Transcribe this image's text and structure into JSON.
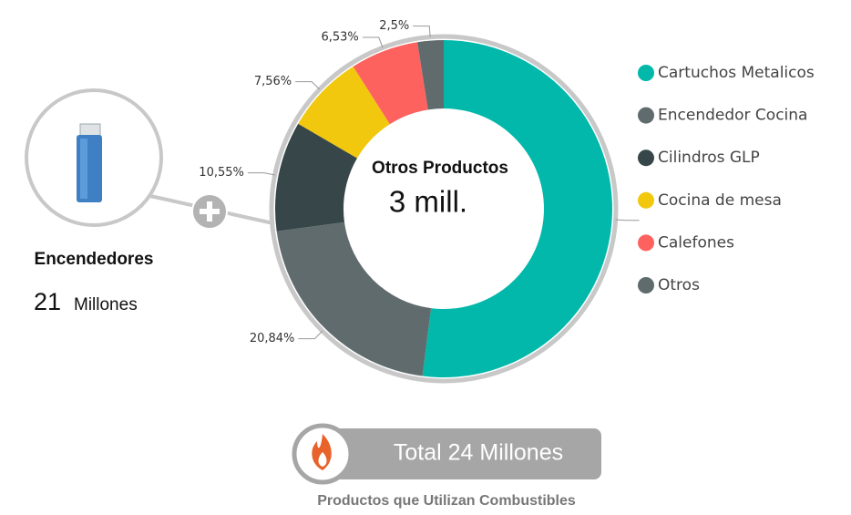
{
  "chart_data": {
    "type": "donut",
    "center_title": "Otros Productos",
    "center_value": "3 mill.",
    "categories": [
      "Cartuchos Metalicos",
      "Encendedor Cocina",
      "Cilindros GLP",
      "Cocina de mesa",
      "Calefones",
      "Otros"
    ],
    "values": [
      52.02,
      20.84,
      10.55,
      7.56,
      6.53,
      2.5
    ],
    "value_labels": [
      null,
      "20,84%",
      "10,55%",
      "7,56%",
      "6,53%",
      "2,5%"
    ],
    "colors": [
      "#01b8aa",
      "#5f6b6d",
      "#374649",
      "#f2c80f",
      "#fd625e",
      "#5f6b6d"
    ]
  },
  "side_card": {
    "title": "Encendedores",
    "value": "21",
    "unit": "Millones"
  },
  "total_badge": "Total 24 Millones",
  "footer": "Productos que Utilizan Combustibles"
}
